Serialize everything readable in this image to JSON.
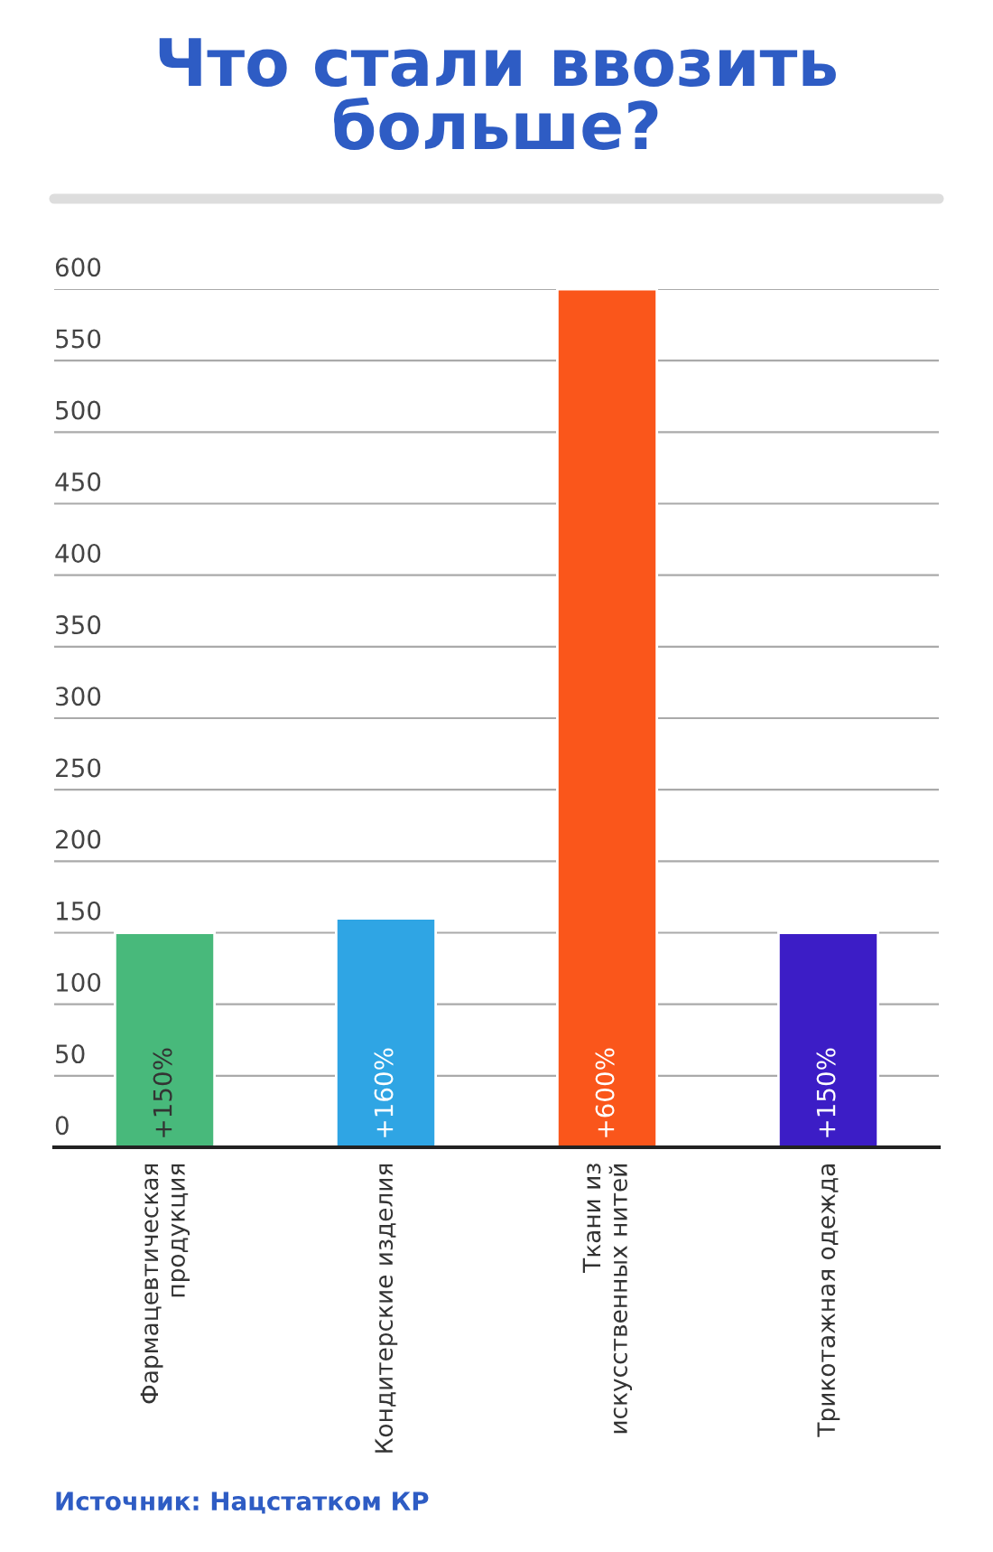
{
  "chart_data": {
    "type": "bar",
    "title": "Что стали ввозить больше?",
    "categories": [
      "Фармацевтическая продукция",
      "Кондитерские изделия",
      "Ткани из искусственных нитей",
      "Трикотажная одежда"
    ],
    "values": [
      150,
      160,
      600,
      150
    ],
    "colors": [
      "#48b97b",
      "#2fa5e4",
      "#fa561b",
      "#3c1dc6"
    ],
    "value_labels": [
      "+150%",
      "+160%",
      "+600%",
      "+150%"
    ],
    "ylim": [
      0,
      600
    ],
    "yticks": [
      0,
      50,
      100,
      150,
      200,
      250,
      300,
      350,
      400,
      450,
      500,
      550,
      600
    ],
    "grid": "y",
    "annotations": [
      "Источник: Нацстатком КР"
    ]
  }
}
